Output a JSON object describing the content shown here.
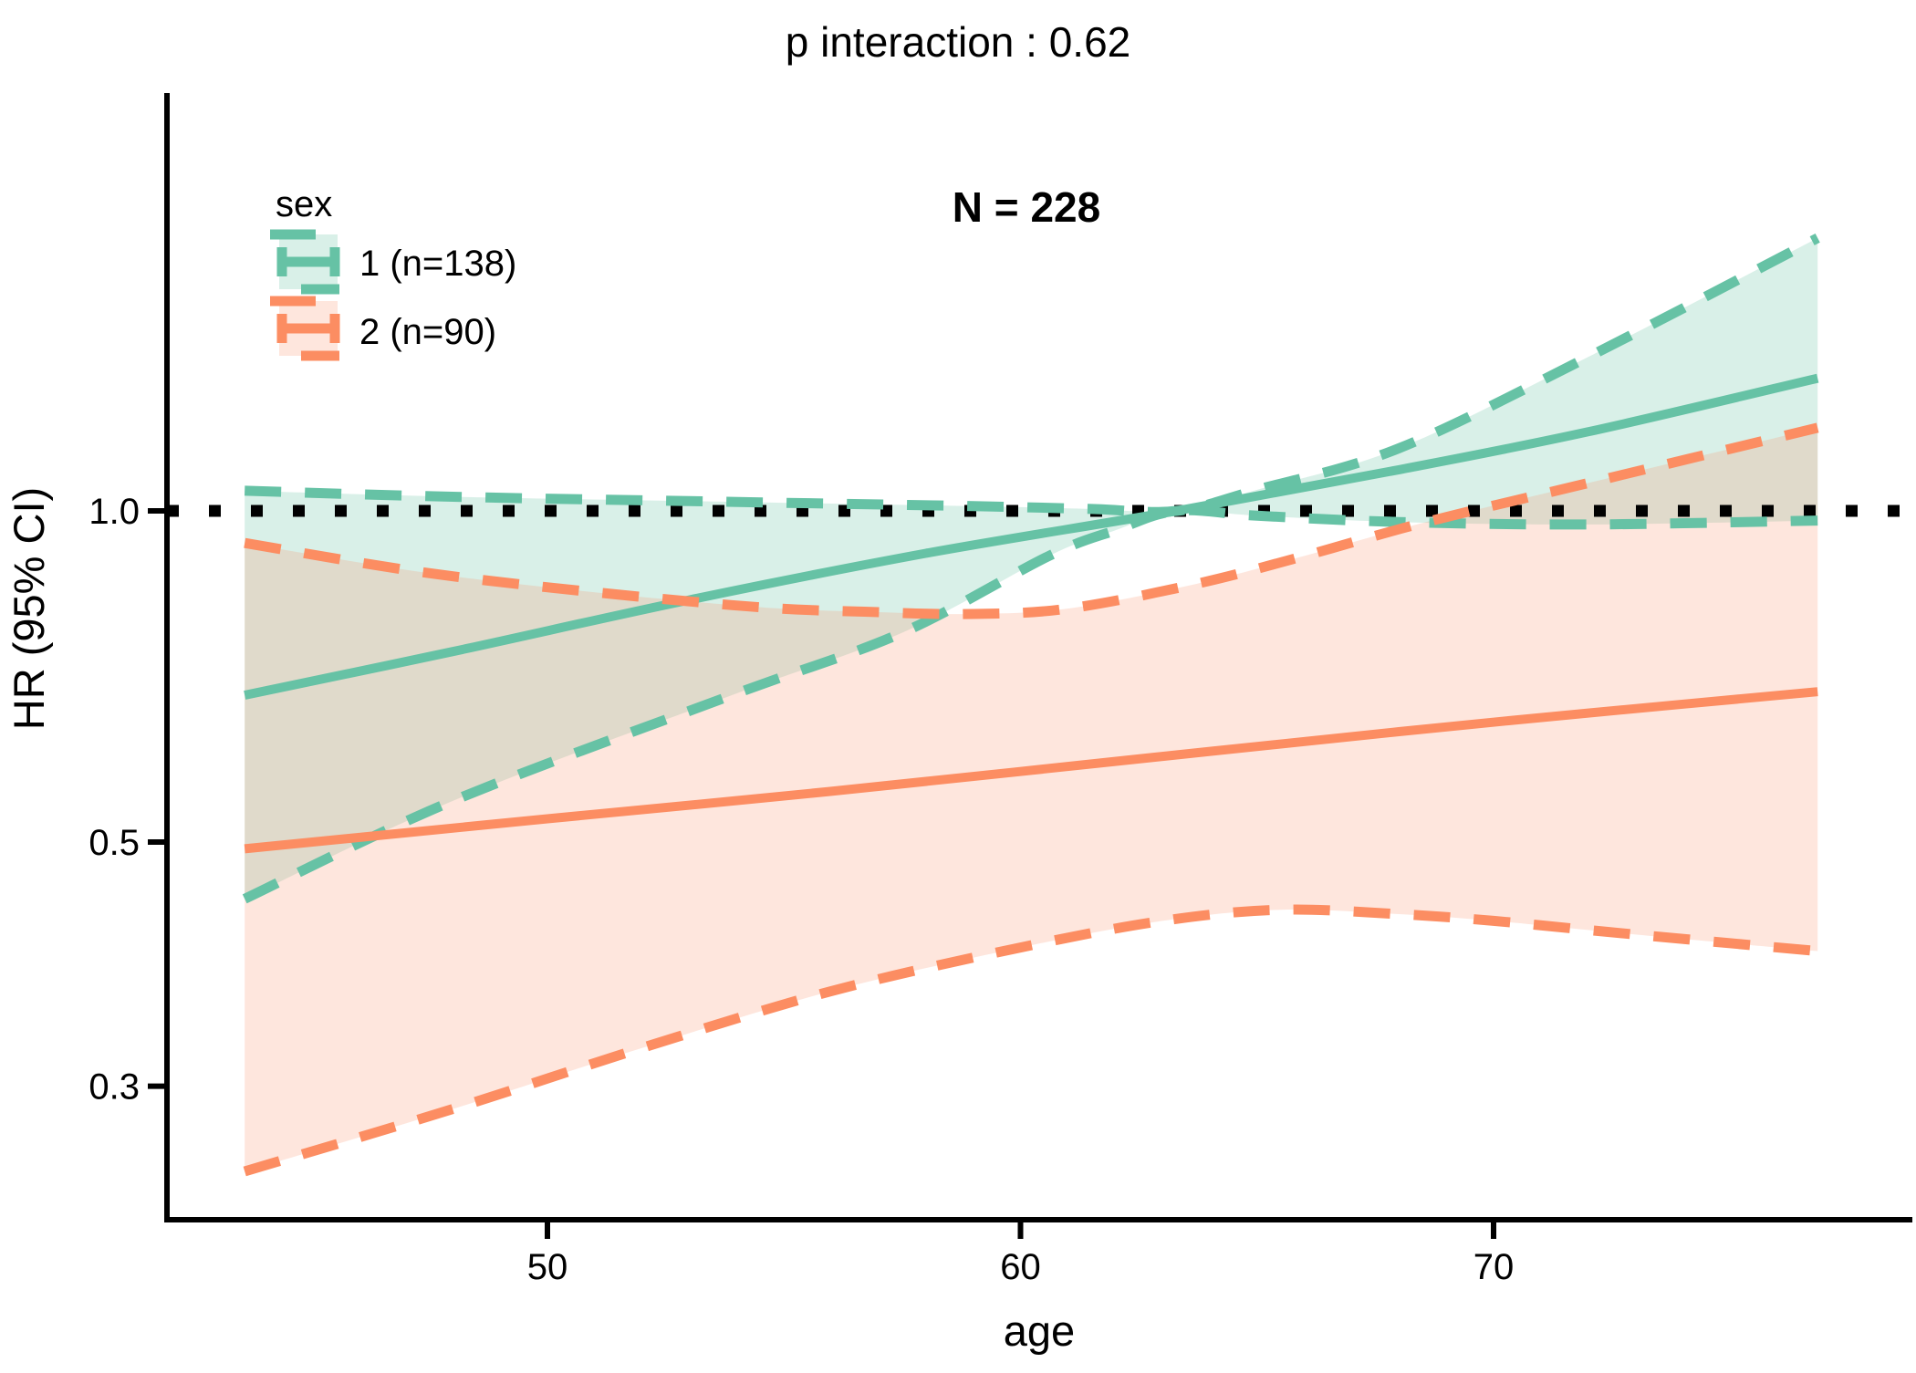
{
  "title": "p interaction : 0.62",
  "annotation": "N = 228",
  "legend": {
    "title": "sex",
    "items": [
      {
        "label": "1 (n=138)",
        "color": "#66C2A5",
        "fill": "rgba(102,194,165,0.25)"
      },
      {
        "label": "2 (n=90)",
        "color": "#FC8D62",
        "fill": "rgba(252,141,98,0.22)"
      }
    ]
  },
  "chart_data": {
    "type": "line",
    "title": "p interaction : 0.62",
    "subtitle_annotation": "N = 228",
    "xlabel": "age",
    "ylabel": "HR (95% CI)",
    "y_scale": "log10",
    "x_ticks": [
      50,
      60,
      70
    ],
    "x_tick_labels": [
      "50",
      "60",
      "70"
    ],
    "y_ticks": [
      1.0,
      0.5,
      0.3
    ],
    "y_tick_labels": [
      "1.0",
      "0.5",
      "0.3"
    ],
    "x_range": [
      43.6,
      76.85
    ],
    "y_range_shown": [
      0.22,
      1.9
    ],
    "reference_line_hr": 1.0,
    "grid": "off",
    "legend_position": "top-left-inside",
    "series": [
      {
        "name": "sex 1 (n=138)",
        "color": "#66C2A5",
        "fill": "rgba(102,194,165,0.25)",
        "mean": {
          "age": [
            43.6,
            48,
            53,
            58,
            63.3,
            68,
            72,
            76.85
          ],
          "hr": [
            0.68,
            0.745,
            0.83,
            0.915,
            1.0,
            1.09,
            1.18,
            1.32
          ]
        },
        "upper": {
          "age": [
            43.6,
            48,
            53.9,
            59,
            61.5,
            63.3,
            65,
            68,
            72,
            76.85
          ],
          "hr": [
            1.043,
            1.03,
            1.019,
            1.01,
            1.004,
            1.0,
            1.045,
            1.14,
            1.38,
            1.77
          ]
        },
        "lower": {
          "age": [
            43.6,
            48,
            53.9,
            57.5,
            60.6,
            62,
            63.3,
            65,
            68,
            72,
            76.85
          ],
          "hr": [
            0.444,
            0.545,
            0.68,
            0.775,
            0.91,
            0.96,
            1.0,
            0.99,
            0.977,
            0.972,
            0.98
          ]
        }
      },
      {
        "name": "sex 2 (n=90)",
        "color": "#FC8D62",
        "fill": "rgba(252,141,98,0.22)",
        "mean": {
          "age": [
            43.6,
            50,
            56,
            62,
            68,
            72,
            76.85
          ],
          "hr": [
            0.493,
            0.525,
            0.556,
            0.592,
            0.63,
            0.655,
            0.685
          ]
        },
        "upper": {
          "age": [
            43.6,
            48,
            53.9,
            57,
            59,
            61,
            63.7,
            66,
            68.5,
            72,
            76.85
          ],
          "hr": [
            0.935,
            0.872,
            0.821,
            0.809,
            0.806,
            0.815,
            0.858,
            0.91,
            0.975,
            1.06,
            1.19
          ]
        },
        "lower": {
          "age": [
            43.6,
            48,
            52,
            56,
            60,
            63,
            65.5,
            68,
            70,
            73,
            76.85
          ],
          "hr": [
            0.251,
            0.286,
            0.325,
            0.366,
            0.401,
            0.424,
            0.434,
            0.43,
            0.424,
            0.412,
            0.398
          ]
        }
      }
    ]
  }
}
